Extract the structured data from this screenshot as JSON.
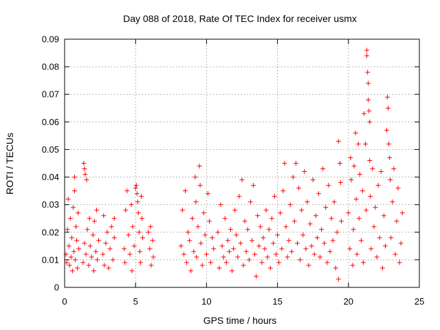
{
  "chart_data": {
    "type": "scatter",
    "title": "Day 088 of 2018, Rate Of TEC Index for receiver usmx",
    "xlabel": "GPS time / hours",
    "ylabel": "ROTI / TECUs",
    "xlim": [
      0,
      25
    ],
    "ylim": [
      0,
      0.09
    ],
    "xticks": [
      0,
      5,
      10,
      15,
      20,
      25
    ],
    "yticks": [
      0,
      0.01,
      0.02,
      0.03,
      0.04,
      0.05,
      0.06,
      0.07,
      0.08,
      0.09
    ],
    "xtick_labels": [
      "0",
      "5",
      "10",
      "15",
      "20",
      "25"
    ],
    "ytick_labels": [
      "0",
      "0.01",
      "0.02",
      "0.03",
      "0.04",
      "0.05",
      "0.06",
      "0.07",
      "0.08",
      "0.09"
    ],
    "grid": true,
    "marker": "+",
    "color": "#ff0000",
    "series": [
      {
        "name": "",
        "points": [
          [
            0.1,
            0.012
          ],
          [
            0.15,
            0.009
          ],
          [
            0.2,
            0.021
          ],
          [
            0.25,
            0.032
          ],
          [
            0.3,
            0.015
          ],
          [
            0.35,
            0.008
          ],
          [
            0.4,
            0.025
          ],
          [
            0.45,
            0.011
          ],
          [
            0.5,
            0.018
          ],
          [
            0.55,
            0.006
          ],
          [
            0.6,
            0.029
          ],
          [
            0.65,
            0.013
          ],
          [
            0.7,
            0.035
          ],
          [
            0.7,
            0.04
          ],
          [
            0.75,
            0.01
          ],
          [
            0.8,
            0.022
          ],
          [
            0.85,
            0.017
          ],
          [
            0.9,
            0.007
          ],
          [
            0.95,
            0.027
          ],
          [
            1.0,
            0.014
          ],
          [
            1.3,
            0.009
          ],
          [
            1.35,
            0.045
          ],
          [
            1.4,
            0.043
          ],
          [
            1.4,
            0.016
          ],
          [
            1.45,
            0.041
          ],
          [
            1.5,
            0.012
          ],
          [
            1.55,
            0.039
          ],
          [
            1.6,
            0.021
          ],
          [
            1.7,
            0.008
          ],
          [
            1.75,
            0.025
          ],
          [
            1.8,
            0.015
          ],
          [
            1.9,
            0.011
          ],
          [
            2.0,
            0.019
          ],
          [
            2.05,
            0.006
          ],
          [
            2.1,
            0.024
          ],
          [
            2.2,
            0.013
          ],
          [
            2.25,
            0.028
          ],
          [
            2.3,
            0.01
          ],
          [
            2.4,
            0.017
          ],
          [
            2.7,
            0.012
          ],
          [
            2.75,
            0.026
          ],
          [
            2.8,
            0.008
          ],
          [
            2.9,
            0.016
          ],
          [
            3.0,
            0.02
          ],
          [
            3.1,
            0.007
          ],
          [
            3.2,
            0.014
          ],
          [
            3.3,
            0.022
          ],
          [
            3.4,
            0.01
          ],
          [
            3.5,
            0.018
          ],
          [
            3.5,
            0.025
          ],
          [
            4.2,
            0.014
          ],
          [
            4.25,
            0.009
          ],
          [
            4.3,
            0.028
          ],
          [
            4.4,
            0.035
          ],
          [
            4.5,
            0.019
          ],
          [
            4.6,
            0.012
          ],
          [
            4.7,
            0.03
          ],
          [
            4.75,
            0.006
          ],
          [
            4.8,
            0.022
          ],
          [
            4.9,
            0.015
          ],
          [
            5.0,
            0.036
          ],
          [
            5.05,
            0.037
          ],
          [
            5.1,
            0.034
          ],
          [
            5.15,
            0.031
          ],
          [
            5.2,
            0.027
          ],
          [
            5.25,
            0.02
          ],
          [
            5.3,
            0.013
          ],
          [
            5.35,
            0.009
          ],
          [
            5.4,
            0.033
          ],
          [
            5.45,
            0.025
          ],
          [
            5.5,
            0.018
          ],
          [
            5.9,
            0.02
          ],
          [
            6.0,
            0.014
          ],
          [
            6.05,
            0.022
          ],
          [
            6.1,
            0.008
          ],
          [
            6.2,
            0.017
          ],
          [
            6.25,
            0.011
          ],
          [
            8.2,
            0.015
          ],
          [
            8.3,
            0.028
          ],
          [
            8.4,
            0.012
          ],
          [
            8.5,
            0.035
          ],
          [
            8.6,
            0.009
          ],
          [
            8.7,
            0.02
          ],
          [
            8.8,
            0.017
          ],
          [
            8.9,
            0.006
          ],
          [
            9.0,
            0.025
          ],
          [
            9.1,
            0.013
          ],
          [
            9.2,
            0.04
          ],
          [
            9.25,
            0.031
          ],
          [
            9.3,
            0.011
          ],
          [
            9.4,
            0.022
          ],
          [
            9.5,
            0.044
          ],
          [
            9.55,
            0.037
          ],
          [
            9.6,
            0.016
          ],
          [
            9.7,
            0.008
          ],
          [
            9.8,
            0.027
          ],
          [
            9.9,
            0.019
          ],
          [
            10.0,
            0.012
          ],
          [
            10.1,
            0.034
          ],
          [
            10.2,
            0.024
          ],
          [
            10.3,
            0.009
          ],
          [
            10.4,
            0.018
          ],
          [
            10.5,
            0.014
          ],
          [
            10.8,
            0.02
          ],
          [
            10.9,
            0.007
          ],
          [
            11.0,
            0.03
          ],
          [
            11.1,
            0.015
          ],
          [
            11.2,
            0.011
          ],
          [
            11.3,
            0.025
          ],
          [
            11.4,
            0.009
          ],
          [
            11.5,
            0.017
          ],
          [
            11.6,
            0.013
          ],
          [
            11.7,
            0.021
          ],
          [
            11.8,
            0.006
          ],
          [
            11.9,
            0.014
          ],
          [
            12.0,
            0.028
          ],
          [
            12.1,
            0.019
          ],
          [
            12.2,
            0.011
          ],
          [
            12.3,
            0.033
          ],
          [
            12.4,
            0.016
          ],
          [
            12.5,
            0.039
          ],
          [
            12.6,
            0.008
          ],
          [
            12.7,
            0.024
          ],
          [
            12.8,
            0.013
          ],
          [
            12.9,
            0.021
          ],
          [
            13.0,
            0.01
          ],
          [
            13.1,
            0.031
          ],
          [
            13.2,
            0.017
          ],
          [
            13.3,
            0.037
          ],
          [
            13.4,
            0.012
          ],
          [
            13.5,
            0.004
          ],
          [
            13.6,
            0.026
          ],
          [
            13.7,
            0.015
          ],
          [
            13.8,
            0.022
          ],
          [
            13.9,
            0.009
          ],
          [
            14.0,
            0.018
          ],
          [
            14.1,
            0.014
          ],
          [
            14.2,
            0.028
          ],
          [
            14.3,
            0.011
          ],
          [
            14.4,
            0.021
          ],
          [
            14.5,
            0.007
          ],
          [
            14.6,
            0.025
          ],
          [
            14.7,
            0.016
          ],
          [
            14.8,
            0.033
          ],
          [
            14.9,
            0.012
          ],
          [
            15.0,
            0.019
          ],
          [
            15.1,
            0.009
          ],
          [
            15.2,
            0.027
          ],
          [
            15.3,
            0.014
          ],
          [
            15.4,
            0.035
          ],
          [
            15.5,
            0.045
          ],
          [
            15.6,
            0.022
          ],
          [
            15.7,
            0.011
          ],
          [
            15.8,
            0.017
          ],
          [
            15.9,
            0.03
          ],
          [
            16.0,
            0.013
          ],
          [
            16.1,
            0.04
          ],
          [
            16.2,
            0.024
          ],
          [
            16.3,
            0.045
          ],
          [
            16.4,
            0.016
          ],
          [
            16.5,
            0.036
          ],
          [
            16.6,
            0.01
          ],
          [
            16.7,
            0.028
          ],
          [
            16.8,
            0.019
          ],
          [
            16.9,
            0.042
          ],
          [
            17.0,
            0.014
          ],
          [
            17.1,
            0.031
          ],
          [
            17.2,
            0.008
          ],
          [
            17.3,
            0.023
          ],
          [
            17.4,
            0.015
          ],
          [
            17.5,
            0.039
          ],
          [
            17.6,
            0.012
          ],
          [
            17.7,
            0.026
          ],
          [
            17.8,
            0.018
          ],
          [
            17.9,
            0.034
          ],
          [
            18.0,
            0.011
          ],
          [
            18.1,
            0.021
          ],
          [
            18.2,
            0.043
          ],
          [
            18.3,
            0.016
          ],
          [
            18.4,
            0.029
          ],
          [
            18.5,
            0.009
          ],
          [
            18.6,
            0.037
          ],
          [
            18.7,
            0.013
          ],
          [
            18.8,
            0.025
          ],
          [
            18.9,
            0.017
          ],
          [
            19.0,
            0.031
          ],
          [
            19.1,
            0.007
          ],
          [
            19.2,
            0.02
          ],
          [
            19.3,
            0.053
          ],
          [
            19.3,
            0.003
          ],
          [
            19.4,
            0.045
          ],
          [
            19.45,
            0.038
          ],
          [
            19.5,
            0.024
          ],
          [
            20.0,
            0.027
          ],
          [
            20.1,
            0.014
          ],
          [
            20.15,
            0.047
          ],
          [
            20.2,
            0.039
          ],
          [
            20.3,
            0.008
          ],
          [
            20.35,
            0.021
          ],
          [
            20.4,
            0.044
          ],
          [
            20.5,
            0.056
          ],
          [
            20.55,
            0.032
          ],
          [
            20.6,
            0.012
          ],
          [
            20.7,
            0.052
          ],
          [
            20.75,
            0.025
          ],
          [
            20.8,
            0.041
          ],
          [
            20.9,
            0.017
          ],
          [
            21.0,
            0.035
          ],
          [
            21.05,
            0.009
          ],
          [
            21.1,
            0.063
          ],
          [
            21.2,
            0.052
          ],
          [
            21.25,
            0.028
          ],
          [
            21.3,
            0.086
          ],
          [
            21.3,
            0.084
          ],
          [
            21.35,
            0.078
          ],
          [
            21.4,
            0.074
          ],
          [
            21.4,
            0.068
          ],
          [
            21.45,
            0.064
          ],
          [
            21.5,
            0.06
          ],
          [
            21.5,
            0.046
          ],
          [
            21.55,
            0.033
          ],
          [
            21.6,
            0.014
          ],
          [
            21.7,
            0.043
          ],
          [
            21.8,
            0.022
          ],
          [
            21.9,
            0.029
          ],
          [
            22.0,
            0.011
          ],
          [
            22.1,
            0.037
          ],
          [
            22.2,
            0.018
          ],
          [
            22.3,
            0.042
          ],
          [
            22.4,
            0.007
          ],
          [
            22.5,
            0.026
          ],
          [
            22.6,
            0.015
          ],
          [
            22.7,
            0.057
          ],
          [
            22.75,
            0.069
          ],
          [
            22.8,
            0.065
          ],
          [
            22.85,
            0.052
          ],
          [
            22.9,
            0.047
          ],
          [
            22.95,
            0.039
          ],
          [
            23.0,
            0.018
          ],
          [
            23.1,
            0.031
          ],
          [
            23.2,
            0.043
          ],
          [
            23.3,
            0.012
          ],
          [
            23.4,
            0.024
          ],
          [
            23.5,
            0.036
          ],
          [
            23.6,
            0.009
          ],
          [
            23.7,
            0.016
          ],
          [
            23.8,
            0.027
          ]
        ]
      }
    ]
  }
}
